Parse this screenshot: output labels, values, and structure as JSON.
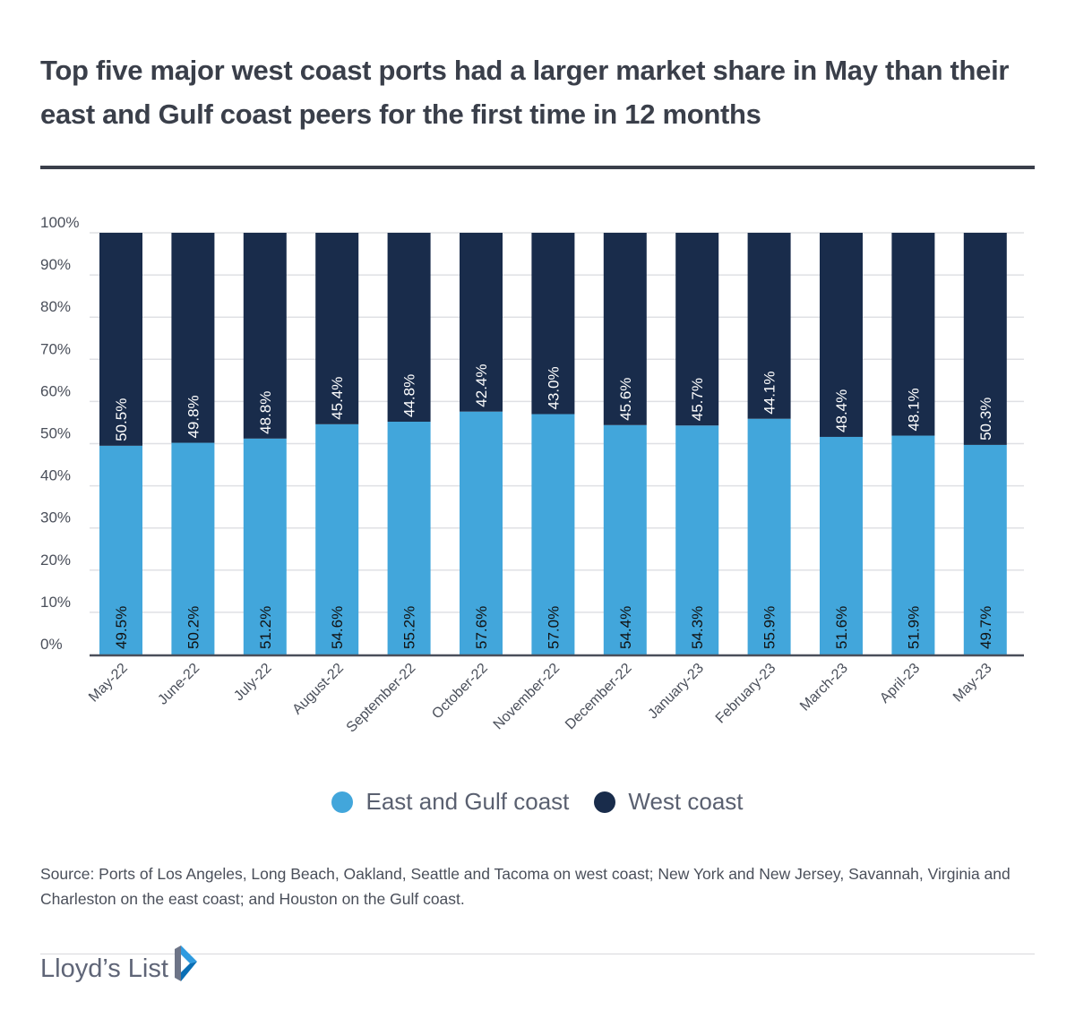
{
  "title": "Top five major west coast ports had a larger market share in May than their east and Gulf coast peers for the first time in 12 months",
  "chart_data": {
    "type": "bar",
    "stacked": true,
    "categories": [
      "May-22",
      "June-22",
      "July-22",
      "August-22",
      "September-22",
      "October-22",
      "November-22",
      "December-22",
      "January-23",
      "February-23",
      "March-23",
      "April-23",
      "May-23"
    ],
    "series": [
      {
        "name": "East and Gulf coast",
        "color": "#42a6db",
        "values": [
          49.5,
          50.2,
          51.2,
          54.6,
          55.2,
          57.6,
          57.0,
          54.4,
          54.3,
          55.9,
          51.6,
          51.9,
          49.7
        ]
      },
      {
        "name": "West coast",
        "color": "#192c4b",
        "values": [
          50.5,
          49.8,
          48.8,
          45.4,
          44.8,
          42.4,
          43.0,
          45.6,
          45.7,
          44.1,
          48.4,
          48.1,
          50.3
        ]
      }
    ],
    "ylim": [
      0,
      100
    ],
    "yticks": [
      "0%",
      "10%",
      "20%",
      "30%",
      "40%",
      "50%",
      "60%",
      "70%",
      "80%",
      "90%",
      "100%"
    ],
    "grid": true,
    "legend": "bottom"
  },
  "source": "Source: Ports of Los Angeles, Long Beach, Oakland, Seattle and Tacoma on west coast; New York and New Jersey, Savannah, Virginia and Charleston on the east coast; and Houston on the Gulf coast.",
  "logo": "Lloyd’s List"
}
